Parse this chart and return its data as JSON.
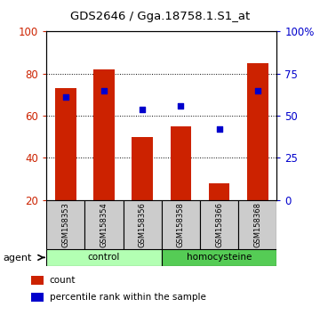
{
  "title": "GDS2646 / Gga.18758.1.S1_at",
  "samples": [
    "GSM158353",
    "GSM158354",
    "GSM158356",
    "GSM158358",
    "GSM158366",
    "GSM158368"
  ],
  "red_values": [
    73,
    82,
    50,
    55,
    28,
    85
  ],
  "blue_values": [
    61,
    65,
    54,
    56,
    42,
    65
  ],
  "ylim_left": [
    20,
    100
  ],
  "ylim_right": [
    0,
    100
  ],
  "yticks_left": [
    20,
    40,
    60,
    80,
    100
  ],
  "yticks_right": [
    0,
    25,
    50,
    75,
    100
  ],
  "yticklabels_right": [
    "0",
    "25",
    "50",
    "75",
    "100%"
  ],
  "groups": [
    {
      "label": "control",
      "indices": [
        0,
        1,
        2
      ],
      "color": "#b3ffb3"
    },
    {
      "label": "homocysteine",
      "indices": [
        3,
        4,
        5
      ],
      "color": "#55cc55"
    }
  ],
  "bar_color": "#cc2200",
  "dot_color": "#0000cc",
  "bar_width": 0.55,
  "bg_color": "#ffffff",
  "sample_box_color": "#cccccc",
  "legend_items": [
    {
      "color": "#cc2200",
      "label": "count"
    },
    {
      "color": "#0000cc",
      "label": "percentile rank within the sample"
    }
  ],
  "agent_label": "agent",
  "left_axis_color": "#cc2200",
  "right_axis_color": "#0000cc"
}
